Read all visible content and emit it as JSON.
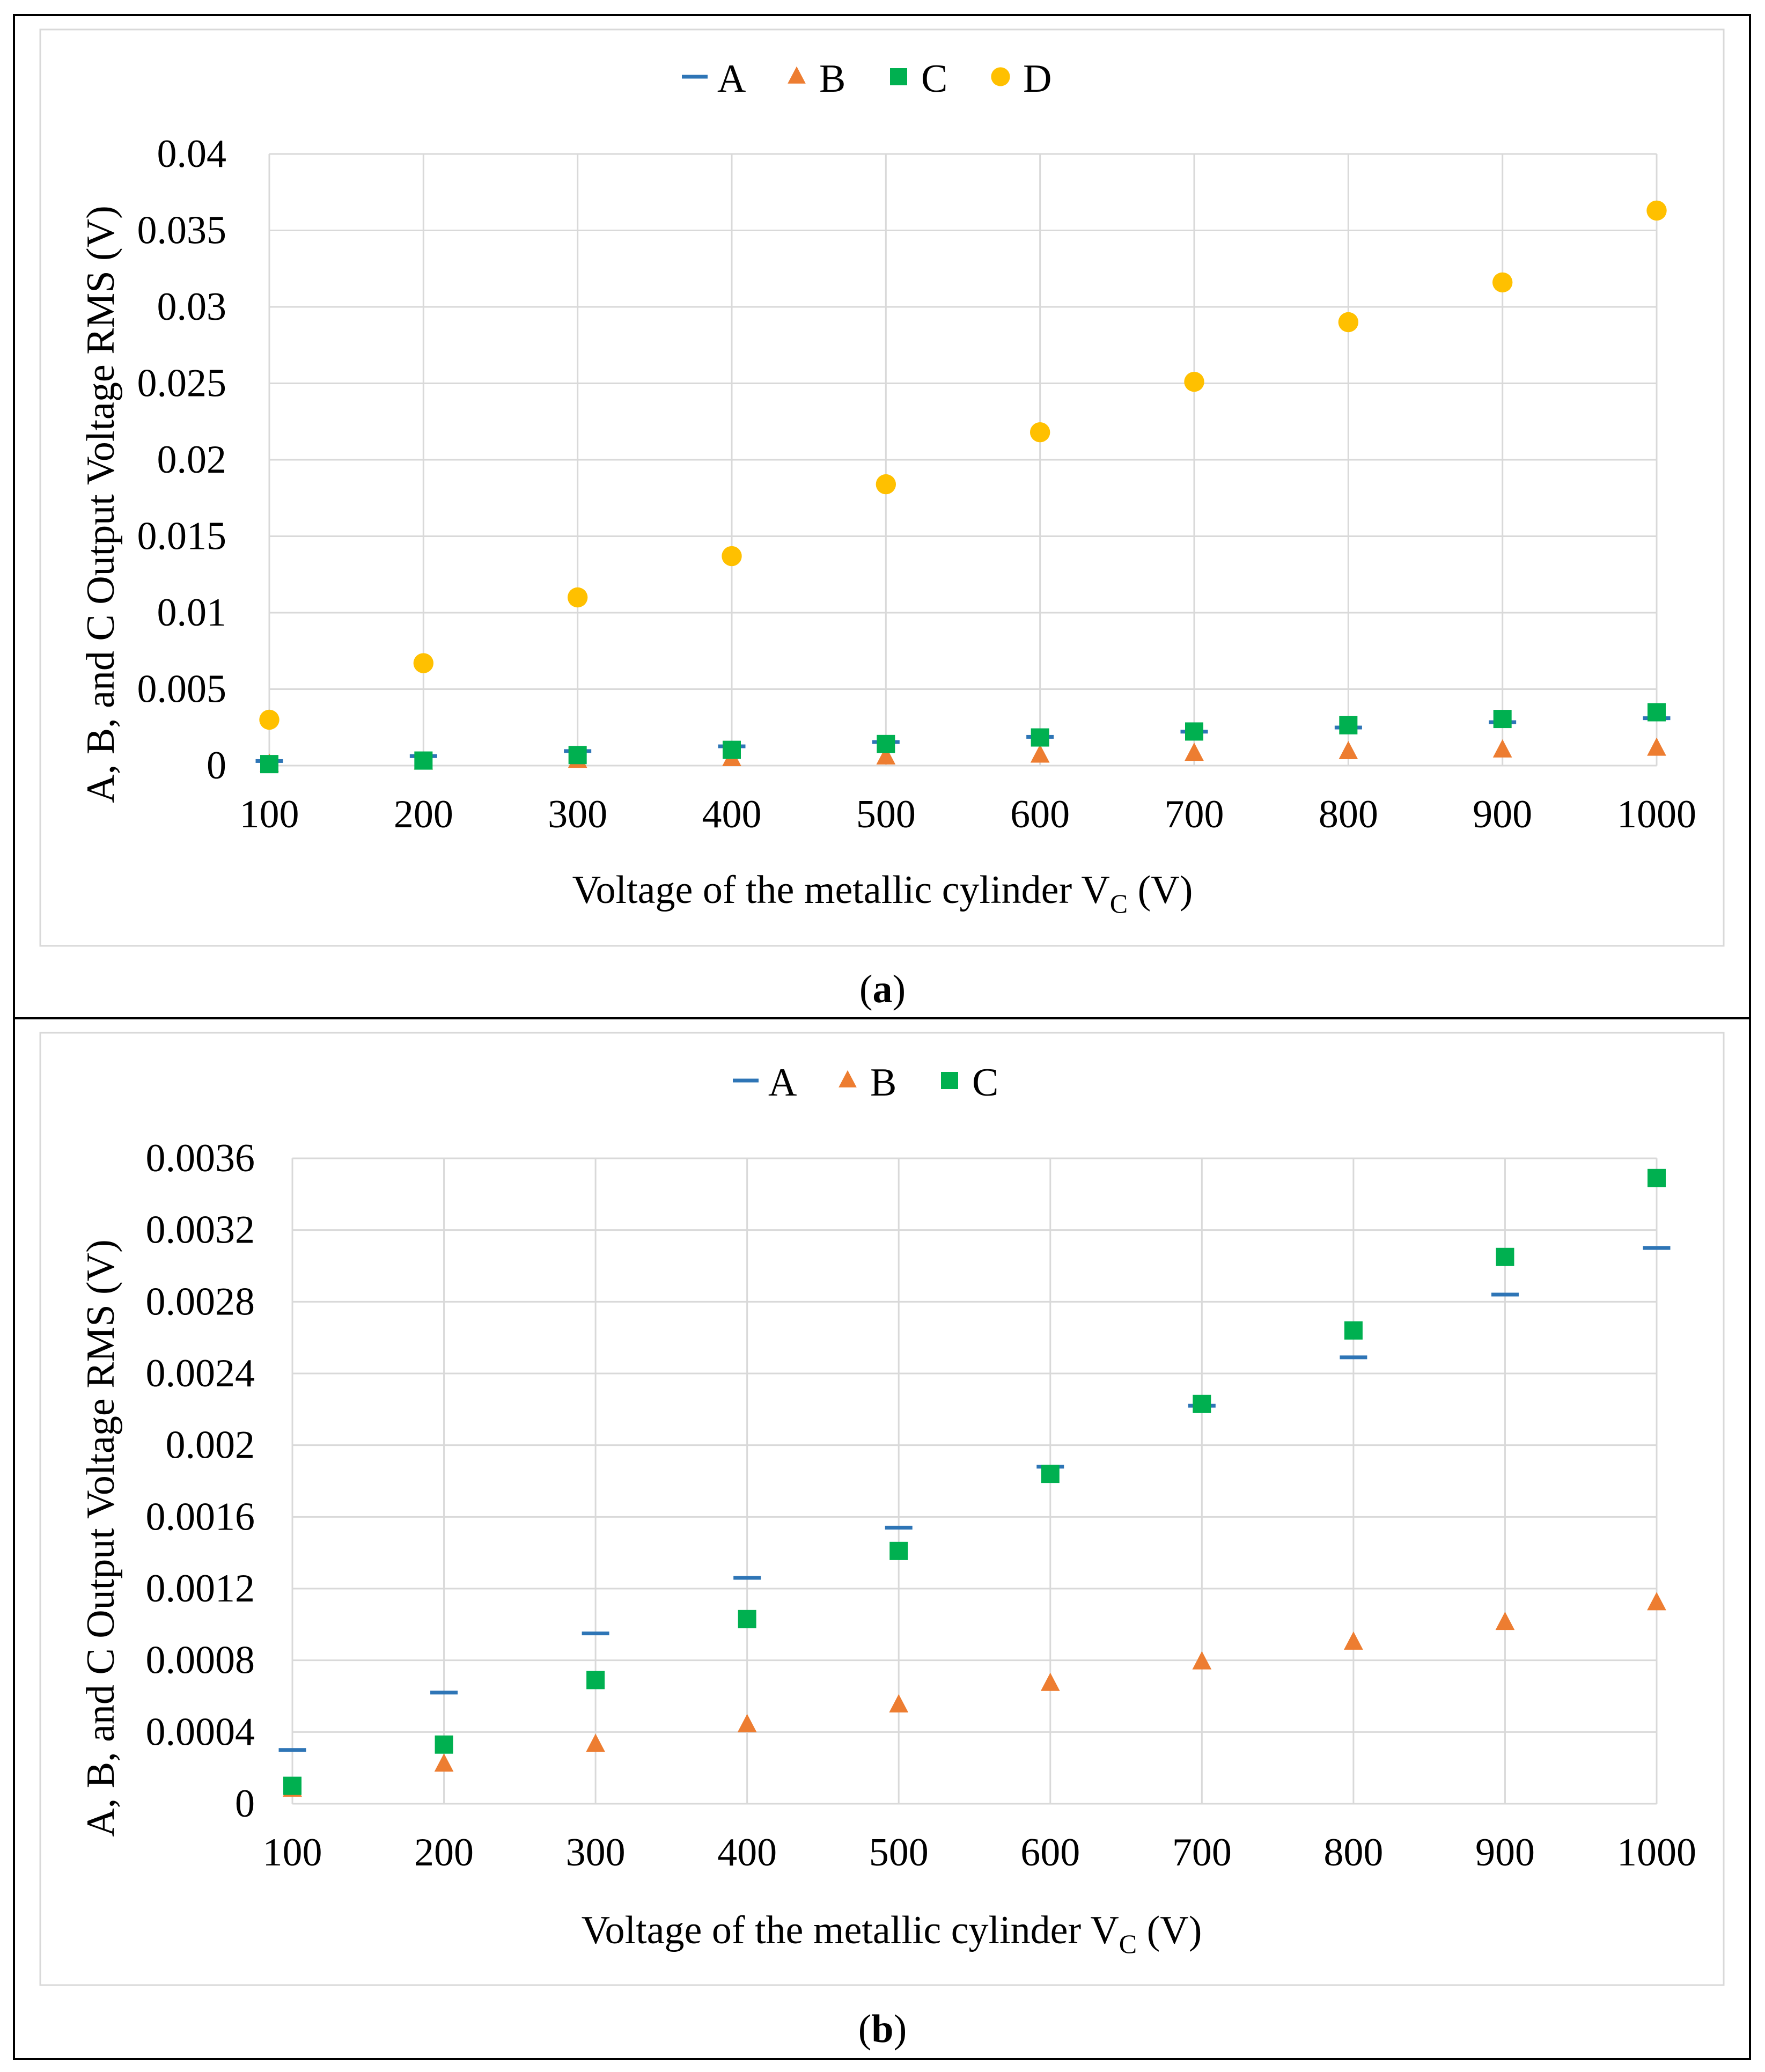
{
  "figure": {
    "label_a": "a",
    "label_b": "b"
  },
  "chart_data": [
    {
      "panel": "(a)",
      "type": "scatter",
      "title": "",
      "xlabel_main": "Voltage of the metallic cylinder V",
      "xlabel_sub": "C",
      "xlabel_unit": " (V)",
      "ylabel": "A, B, and C Output Voltage RMS (V)",
      "categories": [
        "100",
        "200",
        "300",
        "400",
        "500",
        "600",
        "700",
        "800",
        "900",
        "1000"
      ],
      "ylim": [
        0,
        0.04
      ],
      "yticks": [
        "0",
        "0.005",
        "0.01",
        "0.015",
        "0.02",
        "0.025",
        "0.03",
        "0.035",
        "0.04"
      ],
      "grid": true,
      "legend_position": "top-center",
      "series": [
        {
          "name": "A",
          "marker": "dash",
          "color": "#2E75B6",
          "values": [
            0.0003,
            0.00062,
            0.00095,
            0.00126,
            0.00154,
            0.00188,
            0.00222,
            0.00249,
            0.00284,
            0.0031
          ]
        },
        {
          "name": "B",
          "marker": "triangle",
          "color": "#ED7D31",
          "values": [
            8e-05,
            0.00022,
            0.00033,
            0.00044,
            0.00055,
            0.00067,
            0.00079,
            0.0009,
            0.00101,
            0.00112
          ]
        },
        {
          "name": "C",
          "marker": "square",
          "color": "#00B050",
          "values": [
            0.0001,
            0.00033,
            0.00069,
            0.00103,
            0.00141,
            0.00184,
            0.00223,
            0.00264,
            0.00305,
            0.00349
          ]
        },
        {
          "name": "D",
          "marker": "circle",
          "color": "#FFC000",
          "values": [
            0.003,
            0.0067,
            0.011,
            0.0137,
            0.0184,
            0.0218,
            0.0251,
            0.029,
            0.0316,
            0.0363
          ]
        }
      ]
    },
    {
      "panel": "(b)",
      "type": "scatter",
      "title": "",
      "xlabel_main": "Voltage of the metallic cylinder V",
      "xlabel_sub": "C",
      "xlabel_unit": " (V)",
      "ylabel": "A, B, and C Output Voltage RMS (V)",
      "categories": [
        "100",
        "200",
        "300",
        "400",
        "500",
        "600",
        "700",
        "800",
        "900",
        "1000"
      ],
      "ylim": [
        0,
        0.0036
      ],
      "yticks": [
        "0",
        "0.0004",
        "0.0008",
        "0.0012",
        "0.0016",
        "0.002",
        "0.0024",
        "0.0028",
        "0.0032",
        "0.0036"
      ],
      "grid": true,
      "legend_position": "top-center",
      "series": [
        {
          "name": "A",
          "marker": "dash",
          "color": "#2E75B6",
          "values": [
            0.0003,
            0.00062,
            0.00095,
            0.00126,
            0.00154,
            0.00188,
            0.00222,
            0.00249,
            0.00284,
            0.0031
          ]
        },
        {
          "name": "B",
          "marker": "triangle",
          "color": "#ED7D31",
          "values": [
            8e-05,
            0.00022,
            0.00033,
            0.00044,
            0.00055,
            0.00067,
            0.00079,
            0.0009,
            0.00101,
            0.00112
          ]
        },
        {
          "name": "C",
          "marker": "square",
          "color": "#00B050",
          "values": [
            0.0001,
            0.00033,
            0.00069,
            0.00103,
            0.00141,
            0.00184,
            0.00223,
            0.00264,
            0.00305,
            0.00349
          ]
        }
      ]
    }
  ]
}
